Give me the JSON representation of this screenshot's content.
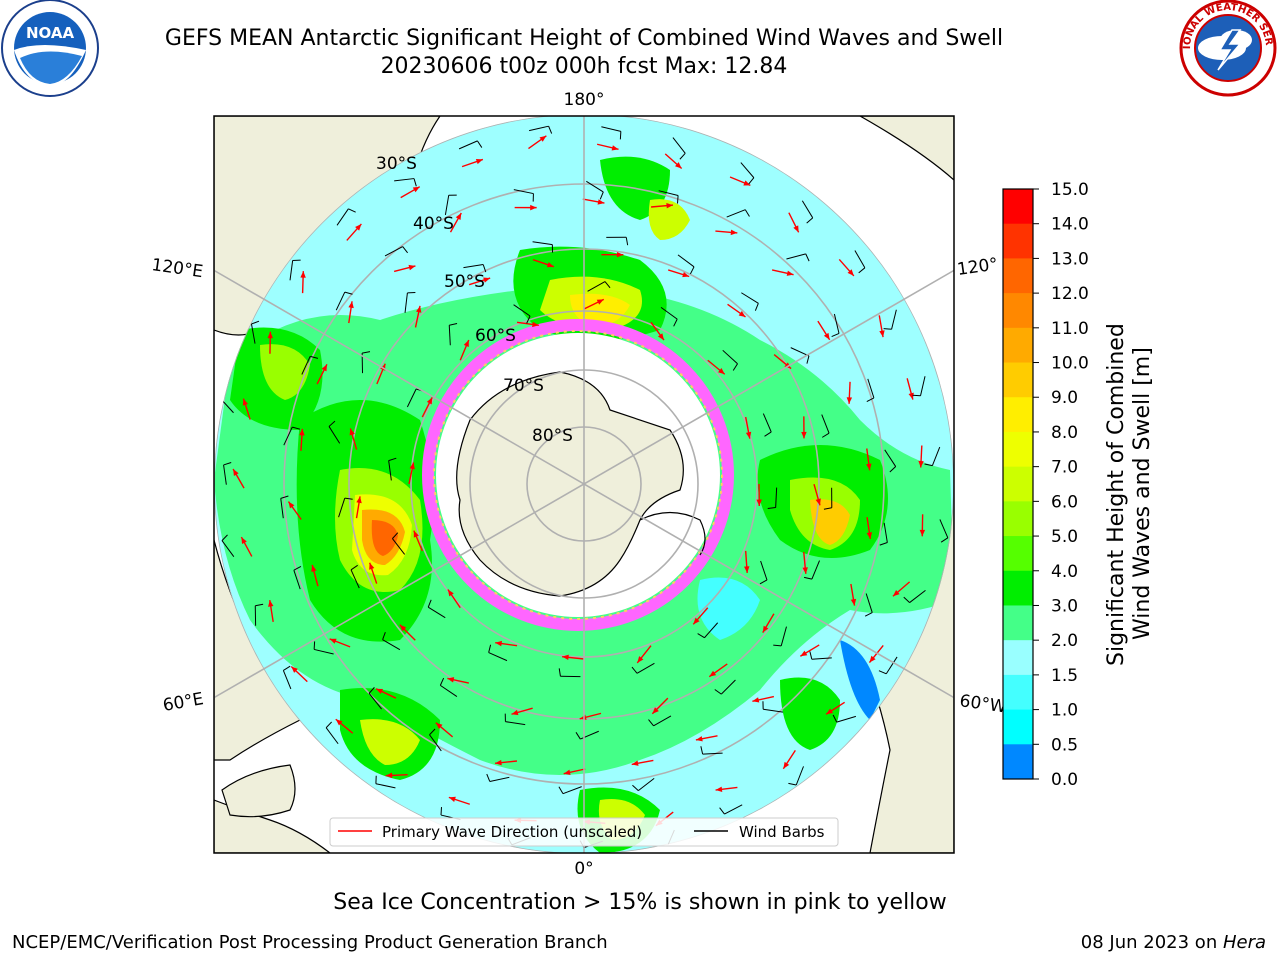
{
  "title": {
    "line1": "GEFS MEAN Antarctic Significant Height of Combined Wind Waves and Swell",
    "line2": "20230606 t00z 000h fcst   Max: 12.84"
  },
  "logos": {
    "left": {
      "name": "noaa-logo",
      "text": "NOAA",
      "ring_text": "NATIONAL OCEANIC AND ATMOSPHERIC ADMINISTRATION · U.S. DEPARTMENT OF COMMERCE"
    },
    "right": {
      "name": "nws-logo",
      "ring_text": "NATIONAL WEATHER SERVICE"
    }
  },
  "map": {
    "projection": "south-polar-stereographic",
    "longitude_labels": [
      "180°",
      "120°E",
      "120°",
      "60°E",
      "60°W",
      "0°"
    ],
    "latitude_labels": [
      "30°S",
      "40°S",
      "50°S",
      "60°S",
      "70°S",
      "80°S"
    ],
    "colors": {
      "land": "#efefdb",
      "ocean_low": "#9effff",
      "ice_edge": "#ff33ff",
      "grid": "#b0b0b0"
    },
    "legend": {
      "items": [
        {
          "label": "Primary Wave Direction (unscaled)",
          "color": "#ff0000"
        },
        {
          "label": "Wind Barbs",
          "color": "#000000"
        }
      ]
    }
  },
  "colorbar": {
    "title_line1": "Significant Height of Combined",
    "title_line2": "Wind Waves and Swell [m]",
    "ticks": [
      "15.0",
      "14.0",
      "13.0",
      "12.0",
      "11.0",
      "10.0",
      "9.0",
      "8.0",
      "7.0",
      "6.0",
      "5.0",
      "4.0",
      "3.0",
      "2.0",
      "1.5",
      "1.0",
      "0.5",
      "0.0"
    ],
    "colors": [
      "#ff0000",
      "#ff3300",
      "#ff6600",
      "#ff8800",
      "#ffaa00",
      "#ffcc00",
      "#ffee00",
      "#eeff00",
      "#ccff00",
      "#99ff00",
      "#55ff00",
      "#00ee00",
      "#44ff88",
      "#99ffff",
      "#44ffff",
      "#00ffff",
      "#0088ff",
      "#0000ff"
    ]
  },
  "ice_note": "Sea Ice Concentration > 15% is shown in pink to yellow",
  "footer": {
    "left": "NCEP/EMC/Verification Post Processing Product Generation Branch",
    "right_date": "08 Jun 2023 on ",
    "right_host": "Hera"
  }
}
